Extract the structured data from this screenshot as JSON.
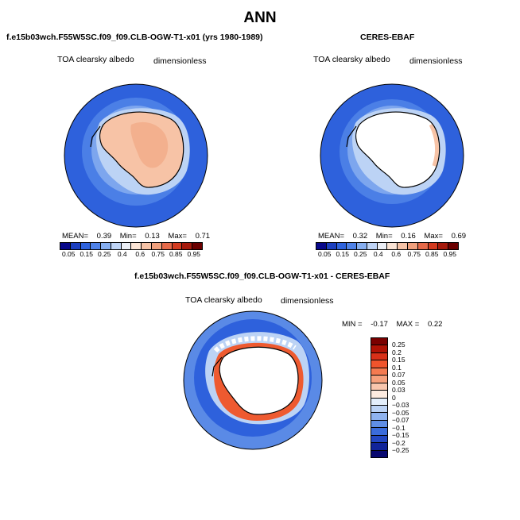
{
  "page": {
    "title": "ANN"
  },
  "panels": {
    "model": {
      "title": "f.e15b03wch.F55W5SC.f09_f09.CLB-OGW-T1-x01 (yrs 1980-1989)",
      "variable": "TOA clearsky albedo",
      "units": "dimensionless",
      "stats": {
        "mean_label": "MEAN=",
        "mean": "0.39",
        "min_label": "Min=",
        "min": "0.13",
        "max_label": "Max=",
        "max": "0.71"
      }
    },
    "obs": {
      "title": "CERES-EBAF",
      "variable": "TOA clearsky albedo",
      "units": "dimensionless",
      "stats": {
        "mean_label": "MEAN=",
        "mean": "0.32",
        "min_label": "Min=",
        "min": "0.16",
        "max_label": "Max=",
        "max": "0.69"
      }
    },
    "diff": {
      "title": "f.e15b03wch.F55W5SC.f09_f09.CLB-OGW-T1-x01 - CERES-EBAF",
      "variable": "TOA clearsky albedo",
      "units": "dimensionless",
      "stats": {
        "min_label": "MIN =",
        "min": "-0.17",
        "max_label": "MAX =",
        "max": "0.22"
      }
    }
  },
  "colorbars": {
    "abs": {
      "labels": [
        "0.05",
        "0.15",
        "0.25",
        "0.4",
        "0.6",
        "0.75",
        "0.85",
        "0.95"
      ],
      "colors": [
        "#08088a",
        "#1c3fbf",
        "#2f63dd",
        "#4f82e8",
        "#86aef0",
        "#bfd4f6",
        "#ebeef5",
        "#fbe4d5",
        "#f6c3a7",
        "#f0a07d",
        "#e66a4a",
        "#d33b20",
        "#a61a0c",
        "#6b0000"
      ]
    },
    "diff": {
      "labels": [
        "0.25",
        "0.2",
        "0.15",
        "0.1",
        "0.07",
        "0.05",
        "0.03",
        "0",
        "−0.03",
        "−0.05",
        "−0.07",
        "−0.1",
        "−0.15",
        "−0.2",
        "−0.25"
      ],
      "colors": [
        "#7a0000",
        "#b01205",
        "#d93018",
        "#f0542c",
        "#f47a50",
        "#f6a07c",
        "#f9c6ad",
        "#fdebe0",
        "#e3eefb",
        "#bcd3f5",
        "#8fb3ef",
        "#5f8ee6",
        "#3b6cdb",
        "#2347c2",
        "#11249a",
        "#080870"
      ]
    }
  },
  "legend_colors": {
    "ocean_far": "#2e61dc",
    "ocean_mid": "#4b7fe6",
    "ocean_near": "#7da6ee",
    "ice_light": "#bcd3f5",
    "land_model": "#f7c3a6",
    "land_model_dark": "#f3b08e",
    "land_obs": "#ffffff",
    "pos_ring": "#ee5a30",
    "neg_white": "#ffffff",
    "diff_base": "#5a8ae6"
  }
}
